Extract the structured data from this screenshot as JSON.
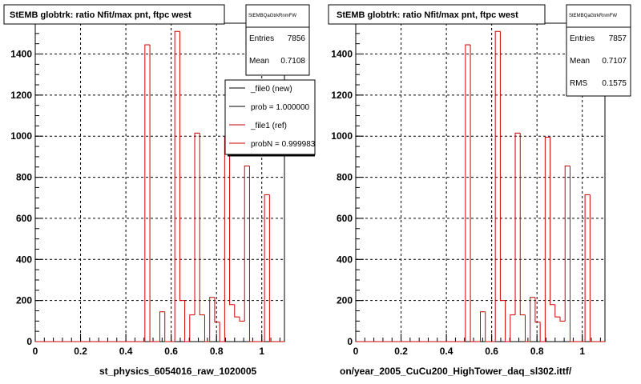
{
  "colors": {
    "hist": "#cc0000",
    "legend_black": "#000000",
    "legend_red": "#cc0000"
  },
  "panels": [
    {
      "title": "StEMB globtrk: ratio Nfit/max pnt, ftpc west",
      "xlabel": "st_physics_6054016_raw_1020005",
      "stats": {
        "header": "StEMBQaGtrkRnmFW",
        "rows": [
          {
            "label": "Entries",
            "value": "7856"
          },
          {
            "label": "Mean",
            "value": "0.7108"
          }
        ]
      },
      "legend": [
        {
          "text": "_file0 (new)",
          "color": "#000000"
        },
        {
          "text": "prob = 1.000000",
          "color": "#000000"
        },
        {
          "text": "_file1 (ref)",
          "color": "#cc0000"
        },
        {
          "text": "probN = 0.999983",
          "color": "#cc0000"
        }
      ]
    },
    {
      "title": "StEMB globtrk: ratio Nfit/max pnt, ftpc west",
      "xlabel": "on/year_2005_CuCu200_HighTower_daq_sl302.ittf/",
      "stats": {
        "header": "StEMBQaGtrkRnmFW",
        "rows": [
          {
            "label": "Entries",
            "value": "7857"
          },
          {
            "label": "Mean",
            "value": "0.7107"
          },
          {
            "label": "RMS",
            "value": "0.1575"
          }
        ]
      },
      "legend": []
    }
  ],
  "chart_data": [
    {
      "type": "bar",
      "title": "StEMB globtrk: ratio Nfit/max pnt, ftpc west",
      "xlabel": "st_physics_6054016_raw_1020005",
      "xlim": [
        0,
        1.1
      ],
      "ylim": [
        0,
        1550
      ],
      "xticks": [
        0,
        0.2,
        0.4,
        0.6,
        0.8,
        1
      ],
      "yticks": [
        0,
        200,
        400,
        600,
        800,
        1000,
        1200,
        1400
      ],
      "grid": true,
      "bin_width": 0.022,
      "bin_edges_start": 0,
      "values": [
        0,
        0,
        0,
        0,
        0,
        0,
        0,
        0,
        0,
        0,
        0,
        0,
        0,
        0,
        0,
        0,
        0,
        0,
        0,
        0,
        0,
        0,
        1445,
        0,
        0,
        145,
        0,
        0,
        1510,
        200,
        0,
        130,
        1015,
        130,
        0,
        215,
        95,
        0,
        995,
        180,
        120,
        100,
        855,
        0,
        0,
        0,
        715,
        0,
        0,
        0
      ],
      "series": [
        {
          "name": "_file1 (ref)"
        }
      ]
    },
    {
      "type": "bar",
      "title": "StEMB globtrk: ratio Nfit/max pnt, ftpc west",
      "xlabel": "on/year_2005_CuCu200_HighTower_daq_sl302.ittf/",
      "xlim": [
        0,
        1.1
      ],
      "ylim": [
        0,
        1550
      ],
      "xticks": [
        0,
        0.2,
        0.4,
        0.6,
        0.8,
        1
      ],
      "yticks": [
        0,
        200,
        400,
        600,
        800,
        1000,
        1200,
        1400
      ],
      "grid": true,
      "bin_width": 0.022,
      "bin_edges_start": 0,
      "values": [
        0,
        0,
        0,
        0,
        0,
        0,
        0,
        0,
        0,
        0,
        0,
        0,
        0,
        0,
        0,
        0,
        0,
        0,
        0,
        0,
        0,
        0,
        1445,
        0,
        0,
        145,
        0,
        0,
        1510,
        200,
        0,
        130,
        1015,
        130,
        0,
        215,
        95,
        0,
        995,
        180,
        120,
        100,
        855,
        0,
        0,
        0,
        715,
        0,
        0,
        0
      ]
    }
  ]
}
